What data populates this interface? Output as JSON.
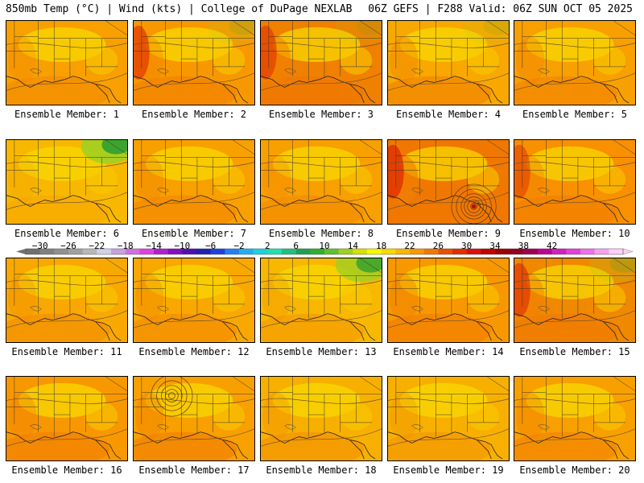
{
  "header": {
    "left": "850mb Temp (°C) | Wind (kts) | College of DuPage NEXLAB",
    "right": "06Z GEFS | F288 Valid: 06Z SUN OCT 05 2025"
  },
  "panels": [
    {
      "label": "Ensemble Member: 1",
      "base": "#f8a000",
      "warm": 0.35,
      "green": 0.0,
      "red": 0.0,
      "low": null
    },
    {
      "label": "Ensemble Member: 2",
      "base": "#f89800",
      "warm": 0.45,
      "green": 0.15,
      "red": 0.35,
      "low": null
    },
    {
      "label": "Ensemble Member: 3",
      "base": "#f08000",
      "warm": 0.7,
      "green": 0.1,
      "red": 0.3,
      "low": null
    },
    {
      "label": "Ensemble Member: 4",
      "base": "#f8a800",
      "warm": 0.5,
      "green": 0.1,
      "red": 0.0,
      "low": null
    },
    {
      "label": "Ensemble Member: 5",
      "base": "#f8a000",
      "warm": 0.45,
      "green": 0.0,
      "red": 0.0,
      "low": null
    },
    {
      "label": "Ensemble Member: 6",
      "base": "#f8b800",
      "warm": 0.15,
      "green": 0.9,
      "red": 0.0,
      "low": null
    },
    {
      "label": "Ensemble Member: 7",
      "base": "#f8a000",
      "warm": 0.4,
      "green": 0.0,
      "red": 0.0,
      "low": null
    },
    {
      "label": "Ensemble Member: 8",
      "base": "#f8a000",
      "warm": 0.35,
      "green": 0.0,
      "red": 0.0,
      "low": null
    },
    {
      "label": "Ensemble Member: 9",
      "base": "#f07800",
      "warm": 0.8,
      "green": 0.0,
      "red": 0.5,
      "low": "east"
    },
    {
      "label": "Ensemble Member: 10",
      "base": "#f89000",
      "warm": 0.5,
      "green": 0.0,
      "red": 0.2,
      "low": null
    },
    {
      "label": "Ensemble Member: 11",
      "base": "#f8a800",
      "warm": 0.35,
      "green": 0.0,
      "red": 0.0,
      "low": null
    },
    {
      "label": "Ensemble Member: 12",
      "base": "#f8a800",
      "warm": 0.4,
      "green": 0.0,
      "red": 0.0,
      "low": null
    },
    {
      "label": "Ensemble Member: 13",
      "base": "#f8b800",
      "warm": 0.3,
      "green": 0.8,
      "red": 0.0,
      "low": null
    },
    {
      "label": "Ensemble Member: 14",
      "base": "#f89800",
      "warm": 0.55,
      "green": 0.0,
      "red": 0.0,
      "low": null
    },
    {
      "label": "Ensemble Member: 15",
      "base": "#f08800",
      "warm": 0.6,
      "green": 0.2,
      "red": 0.35,
      "low": null
    },
    {
      "label": "Ensemble Member: 16",
      "base": "#f89800",
      "warm": 0.5,
      "green": 0.0,
      "red": 0.0,
      "low": null
    },
    {
      "label": "Ensemble Member: 17",
      "base": "#f8a000",
      "warm": 0.55,
      "green": 0.0,
      "red": 0.0,
      "low": "west"
    },
    {
      "label": "Ensemble Member: 18",
      "base": "#f8b000",
      "warm": 0.35,
      "green": 0.0,
      "red": 0.0,
      "low": null
    },
    {
      "label": "Ensemble Member: 19",
      "base": "#f8b000",
      "warm": 0.3,
      "green": 0.0,
      "red": 0.0,
      "low": null
    },
    {
      "label": "Ensemble Member: 20",
      "base": "#f8a000",
      "warm": 0.45,
      "green": 0.0,
      "red": 0.0,
      "low": null
    }
  ],
  "colorbar": {
    "labels": [
      "−30",
      "−26",
      "−22",
      "−18",
      "−14",
      "−10",
      "−6",
      "−2",
      "2",
      "6",
      "10",
      "14",
      "18",
      "22",
      "26",
      "30",
      "34",
      "38",
      "42"
    ],
    "colors": [
      "#707070",
      "#808080",
      "#909090",
      "#a0a0a0",
      "#b8b8b8",
      "#d0d0e8",
      "#c8a0e0",
      "#d070e0",
      "#e040e0",
      "#b020d0",
      "#8010c0",
      "#5010b0",
      "#2020b0",
      "#2040e0",
      "#2080f0",
      "#20b0f0",
      "#20d0e0",
      "#20e0b0",
      "#20c080",
      "#20a050",
      "#30b030",
      "#60c030",
      "#a0d020",
      "#d8e000",
      "#f8f800",
      "#f8d800",
      "#f8b800",
      "#f89800",
      "#f07800",
      "#e85000",
      "#e03000",
      "#d81010",
      "#c00000",
      "#a00000",
      "#900020",
      "#a00050",
      "#c00090",
      "#d020c0",
      "#e040d8",
      "#f070e8",
      "#f8a0f0",
      "#fcd0f8"
    ]
  }
}
